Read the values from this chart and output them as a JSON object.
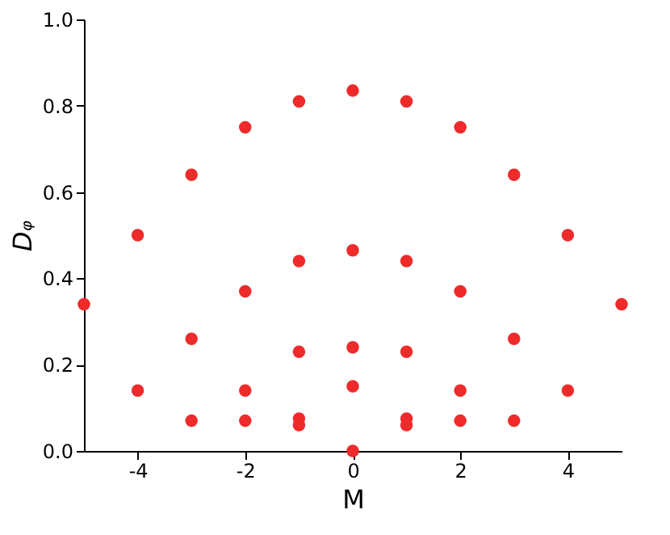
{
  "chart_data": {
    "type": "scatter",
    "xlabel": "M",
    "ylabel": "Dᵩ",
    "marker": "circle",
    "grid": false,
    "x": [
      -5,
      -4,
      -4,
      -3,
      -3,
      -3,
      -2,
      -2,
      -2,
      -2,
      -1,
      -1,
      -1,
      -1,
      -1,
      0,
      0,
      0,
      0,
      0,
      1,
      1,
      1,
      1,
      1,
      2,
      2,
      2,
      2,
      3,
      3,
      3,
      4,
      4,
      5
    ],
    "series": [
      {
        "color": "#ee2a2a",
        "values": [
          0.34,
          0.5,
          0.14,
          0.64,
          0.26,
          0.07,
          0.75,
          0.37,
          0.14,
          0.07,
          0.81,
          0.44,
          0.23,
          0.075,
          0.06,
          0.835,
          0.465,
          0.24,
          0.15,
          0.0,
          0.81,
          0.44,
          0.23,
          0.075,
          0.06,
          0.75,
          0.37,
          0.14,
          0.07,
          0.64,
          0.26,
          0.07,
          0.5,
          0.14,
          0.34
        ]
      }
    ],
    "xlim": [
      -5,
      5
    ],
    "xticks": [
      -4,
      -2,
      0,
      2,
      4
    ],
    "ylim": [
      0,
      1.0
    ],
    "yticks": [
      {
        "value": 0,
        "label": "0.0"
      },
      {
        "value": 0.2,
        "label": "0.2"
      },
      {
        "value": 0.4,
        "label": "0.4"
      },
      {
        "value": 0.6,
        "label": "0.6"
      },
      {
        "value": 0.8,
        "label": "0.8"
      },
      {
        "value": 1.0,
        "label": "1.0"
      }
    ]
  }
}
